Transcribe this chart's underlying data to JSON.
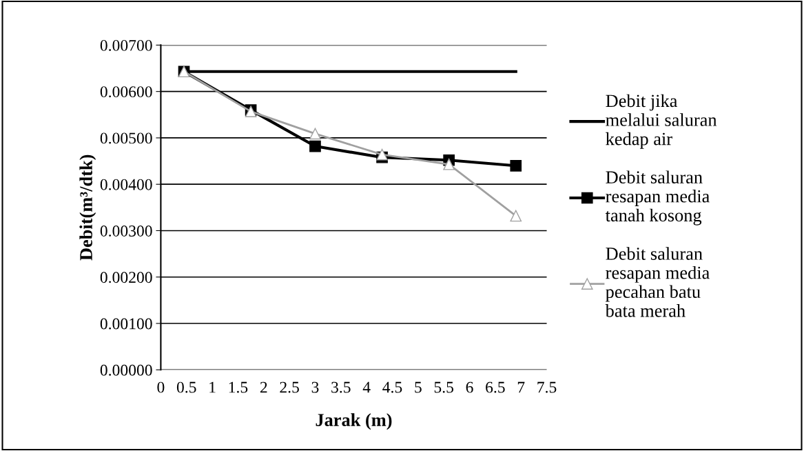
{
  "chart_data": {
    "type": "line",
    "xlabel": "Jarak (m)",
    "ylabel": "Debit(m³/dtk)",
    "xlim": [
      0,
      7.5
    ],
    "xticks": [
      0,
      0.5,
      1,
      1.5,
      2,
      2.5,
      3,
      3.5,
      4,
      4.5,
      5,
      5.5,
      6,
      6.5,
      7,
      7.5
    ],
    "ylim": [
      0,
      0.007
    ],
    "yticks": [
      {
        "value": 0,
        "label": "0.00000"
      },
      {
        "value": 0.001,
        "label": "0.00100"
      },
      {
        "value": 0.002,
        "label": "0.00200"
      },
      {
        "value": 0.003,
        "label": "0.00300"
      },
      {
        "value": 0.004,
        "label": "0.00400"
      },
      {
        "value": 0.005,
        "label": "0.00500"
      },
      {
        "value": 0.006,
        "label": "0.00600"
      },
      {
        "value": 0.007,
        "label": "0.00700"
      }
    ],
    "grid": "y",
    "legend": "right",
    "x": [
      0.45,
      1.75,
      3.0,
      4.3,
      5.6,
      6.9
    ],
    "series": [
      {
        "name": "Debit jika\nmelalui saluran\nkedap air",
        "color": "#000000",
        "marker": "none",
        "values": [
          0.00643,
          0.00643,
          0.00643,
          0.00643,
          0.00643,
          0.00643
        ]
      },
      {
        "name": "Debit saluran\nresapan media\ntanah kosong",
        "color": "#000000",
        "marker": "square",
        "values": [
          0.00643,
          0.0056,
          0.00482,
          0.00458,
          0.00452,
          0.0044
        ]
      },
      {
        "name": "Debit saluran\nresapan media\npecahan batu\nbata merah",
        "color": "#a0a0a0",
        "marker": "triangle",
        "values": [
          0.00643,
          0.00557,
          0.00509,
          0.00464,
          0.00443,
          0.00332
        ]
      }
    ]
  }
}
